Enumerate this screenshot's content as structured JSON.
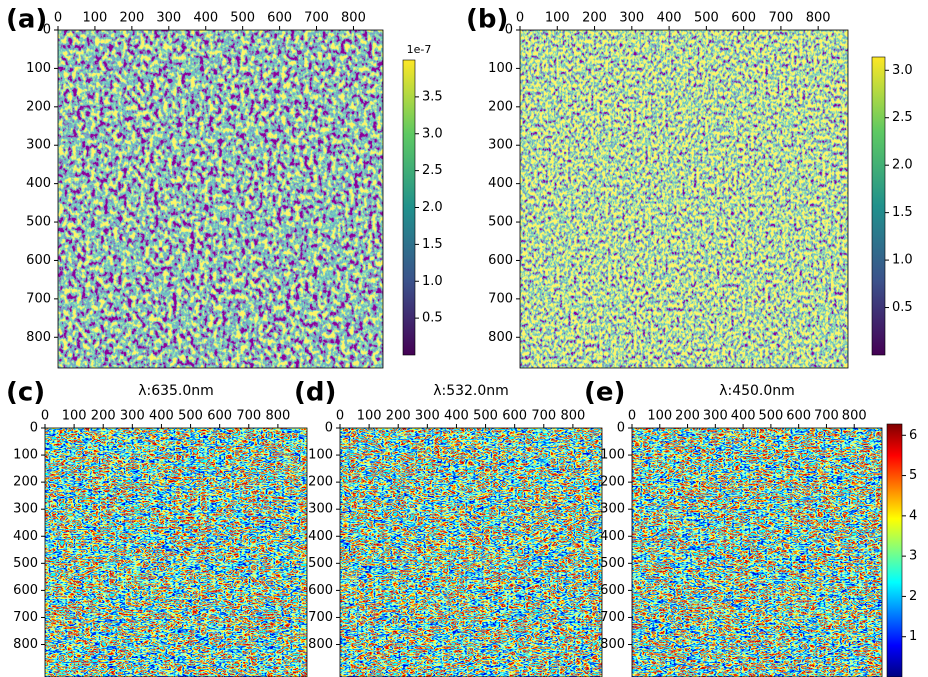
{
  "chart_data": [
    {
      "type": "heatmap",
      "label": "(a)",
      "colormap": "viridis",
      "xlim": [
        0,
        880
      ],
      "ylim": [
        0,
        880
      ],
      "xticks": [
        0,
        100,
        200,
        300,
        400,
        500,
        600,
        700,
        800
      ],
      "yticks": [
        0,
        100,
        200,
        300,
        400,
        500,
        600,
        700,
        800
      ],
      "colorbar": {
        "lim": [
          0,
          4
        ],
        "offset": "1e-7",
        "ticks": [
          0.5,
          {
            "value": 1,
            "label": "1.0"
          },
          1.5,
          {
            "value": 2,
            "label": "2.0"
          },
          2.5,
          {
            "value": 3,
            "label": "3.0"
          },
          3.5
        ]
      }
    },
    {
      "type": "heatmap",
      "label": "(b)",
      "colormap": "viridis",
      "xlim": [
        0,
        880
      ],
      "ylim": [
        0,
        880
      ],
      "xticks": [
        0,
        100,
        200,
        300,
        400,
        500,
        600,
        700,
        800
      ],
      "yticks": [
        0,
        100,
        200,
        300,
        400,
        500,
        600,
        700,
        800
      ],
      "colorbar": {
        "lim": [
          0,
          3.14
        ],
        "ticks": [
          0.5,
          {
            "value": 1,
            "label": "1.0"
          },
          1.5,
          {
            "value": 2,
            "label": "2.0"
          },
          2.5,
          {
            "value": 3,
            "label": "3.0"
          }
        ]
      }
    },
    {
      "type": "heatmap",
      "label": "(c)",
      "title": "λ:635.0nm",
      "colormap": "jet",
      "xlim": [
        0,
        900
      ],
      "ylim": [
        0,
        920
      ],
      "xticks": [
        0,
        100,
        200,
        300,
        400,
        500,
        600,
        700,
        800
      ],
      "yticks": [
        0,
        100,
        200,
        300,
        400,
        500,
        600,
        700,
        800
      ]
    },
    {
      "type": "heatmap",
      "label": "(d)",
      "title": "λ:532.0nm",
      "colormap": "jet",
      "xlim": [
        0,
        900
      ],
      "ylim": [
        0,
        920
      ],
      "xticks": [
        0,
        100,
        200,
        300,
        400,
        500,
        600,
        700,
        800
      ],
      "yticks": [
        0,
        100,
        200,
        300,
        400,
        500,
        600,
        700,
        800
      ]
    },
    {
      "type": "heatmap",
      "label": "(e)",
      "title": "λ:450.0nm",
      "colormap": "jet",
      "xlim": [
        0,
        900
      ],
      "ylim": [
        0,
        920
      ],
      "xticks": [
        0,
        100,
        200,
        300,
        400,
        500,
        600,
        700,
        800
      ],
      "yticks": [
        0,
        100,
        200,
        300,
        400,
        500,
        600,
        700,
        800
      ],
      "colorbar": {
        "lim": [
          0,
          6.28
        ],
        "ticks": [
          1,
          2,
          3,
          4,
          5,
          6
        ]
      }
    }
  ]
}
